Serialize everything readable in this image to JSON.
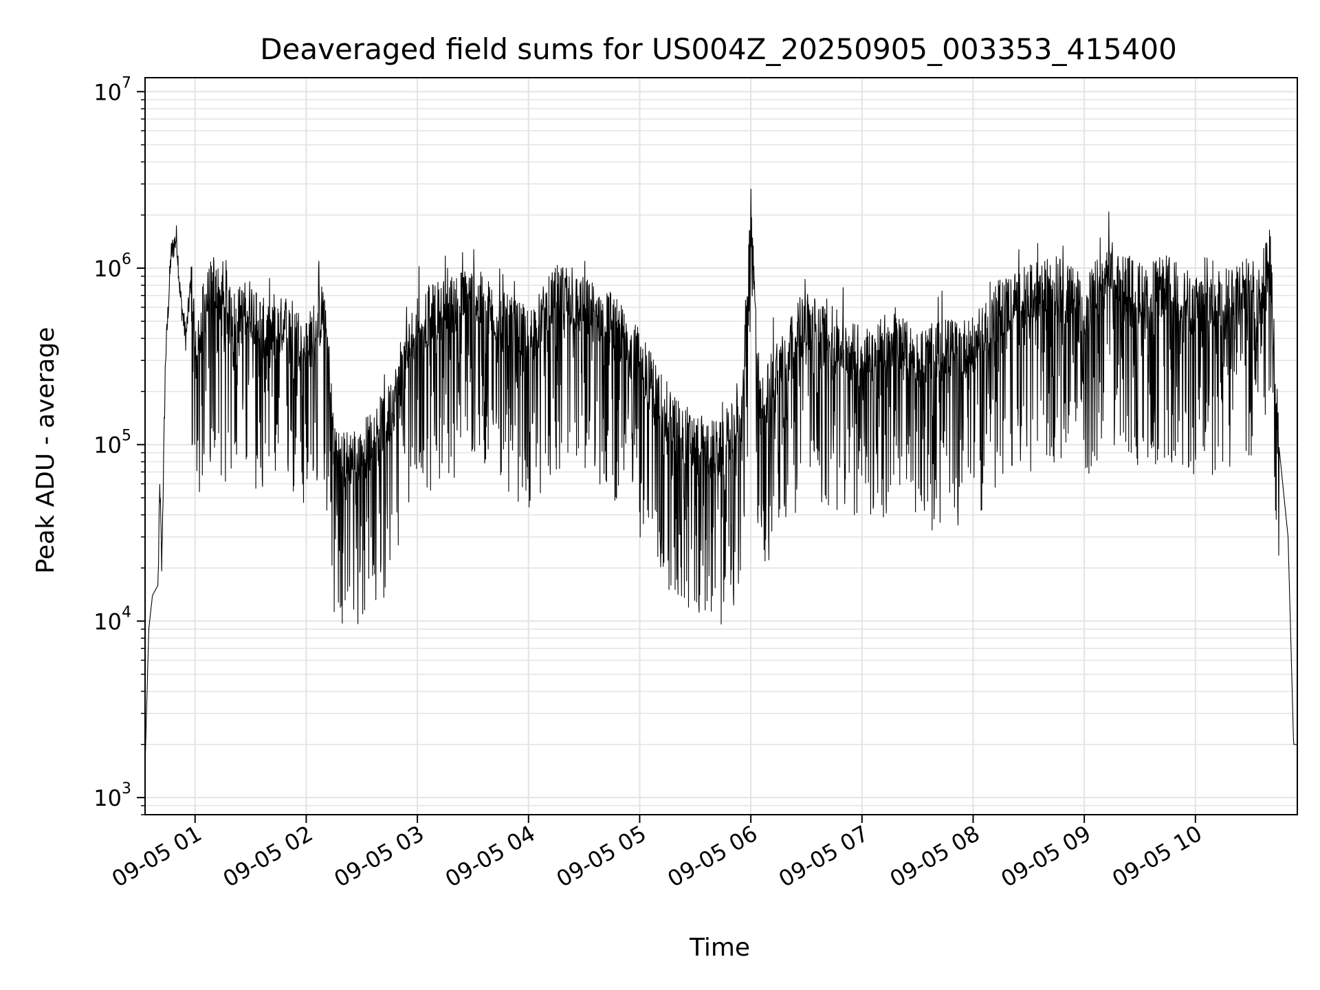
{
  "chart_data": {
    "type": "line",
    "title": "Deaveraged field sums for US004Z_20250905_003353_415400",
    "xlabel": "Time",
    "ylabel": "Peak ADU - average",
    "yscale": "log",
    "ylim": [
      800,
      12000000
    ],
    "xlim": [
      "09-05 00:33",
      "09-05 10:55"
    ],
    "grid": true,
    "line_color": "#000000",
    "grid_color": "#e3e3e3",
    "x_ticks": [
      "09-05 01",
      "09-05 02",
      "09-05 03",
      "09-05 04",
      "09-05 05",
      "09-05 06",
      "09-05 07",
      "09-05 08",
      "09-05 09",
      "09-05 10"
    ],
    "y_ticks": [
      {
        "value": 1000,
        "base": "10",
        "exp": "3"
      },
      {
        "value": 10000,
        "base": "10",
        "exp": "4"
      },
      {
        "value": 100000,
        "base": "10",
        "exp": "5"
      },
      {
        "value": 1000000,
        "base": "10",
        "exp": "6"
      },
      {
        "value": 10000000,
        "base": "10",
        "exp": "7"
      }
    ],
    "series": [
      {
        "x": [
          "09-05 00:33",
          "09-05 00:35",
          "09-05 00:37",
          "09-05 00:40",
          "09-05 00:41",
          "09-05 00:42",
          "09-05 00:44",
          "09-05 00:47",
          "09-05 00:50",
          "09-05 00:52",
          "09-05 00:55",
          "09-05 00:58",
          "09-05 01:00",
          "09-05 01:05",
          "09-05 01:10",
          "09-05 01:20",
          "09-05 01:30",
          "09-05 01:40",
          "09-05 01:50",
          "09-05 02:00",
          "09-05 02:10",
          "09-05 02:15",
          "09-05 02:20",
          "09-05 02:30",
          "09-05 02:45",
          "09-05 03:00",
          "09-05 03:15",
          "09-05 03:30",
          "09-05 03:45",
          "09-05 04:00",
          "09-05 04:15",
          "09-05 04:30",
          "09-05 04:45",
          "09-05 05:00",
          "09-05 05:15",
          "09-05 05:30",
          "09-05 05:45",
          "09-05 05:55",
          "09-05 06:00",
          "09-05 06:05",
          "09-05 06:15",
          "09-05 06:30",
          "09-05 06:45",
          "09-05 07:00",
          "09-05 07:15",
          "09-05 07:30",
          "09-05 07:45",
          "09-05 08:00",
          "09-05 08:15",
          "09-05 08:30",
          "09-05 08:45",
          "09-05 09:00",
          "09-05 09:15",
          "09-05 09:30",
          "09-05 09:45",
          "09-05 10:00",
          "09-05 10:15",
          "09-05 10:25",
          "09-05 10:35",
          "09-05 10:40",
          "09-05 10:45",
          "09-05 10:50",
          "09-05 10:53"
        ],
        "y": [
          1500,
          9000,
          14000,
          16000,
          60000,
          20000,
          300000,
          1200000,
          1500000,
          700000,
          400000,
          900000,
          300000,
          600000,
          800000,
          500000,
          600000,
          400000,
          500000,
          350000,
          600000,
          100000,
          80000,
          90000,
          150000,
          500000,
          600000,
          700000,
          500000,
          400000,
          700000,
          600000,
          500000,
          300000,
          150000,
          100000,
          90000,
          150000,
          1900000,
          150000,
          300000,
          500000,
          400000,
          300000,
          400000,
          300000,
          350000,
          350000,
          600000,
          700000,
          800000,
          600000,
          1000000,
          700000,
          800000,
          600000,
          700000,
          800000,
          700000,
          1300000,
          100000,
          30000,
          2000
        ]
      }
    ]
  }
}
